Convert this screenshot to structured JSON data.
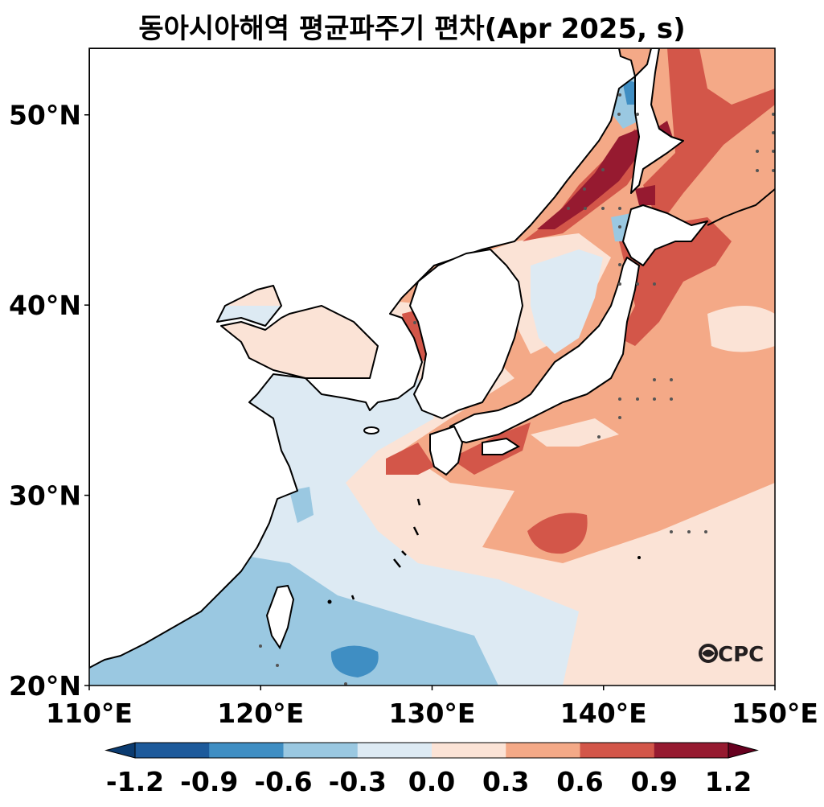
{
  "title": "동아시아해역 평균파주기 편차(Apr 2025, s)",
  "logo_text": "CPC",
  "map": {
    "extent": {
      "lon_min": 110,
      "lon_max": 150,
      "lat_min": 20,
      "lat_max": 53.5
    },
    "x_ticks": [
      {
        "value": 110,
        "label": "110°E"
      },
      {
        "value": 120,
        "label": "120°E"
      },
      {
        "value": 130,
        "label": "130°E"
      },
      {
        "value": 140,
        "label": "140°E"
      },
      {
        "value": 150,
        "label": "150°E"
      }
    ],
    "y_ticks": [
      {
        "value": 20,
        "label": "20°N"
      },
      {
        "value": 30,
        "label": "30°N"
      },
      {
        "value": 40,
        "label": "40°N"
      },
      {
        "value": 50,
        "label": "50°N"
      }
    ]
  },
  "colorbar": {
    "levels": [
      -1.2,
      -0.9,
      -0.6,
      -0.3,
      0.0,
      0.3,
      0.6,
      0.9,
      1.2
    ],
    "labels": [
      "-1.2",
      "-0.9",
      "-0.6",
      "-0.3",
      "0.0",
      "0.3",
      "0.6",
      "0.9",
      "1.2"
    ],
    "under_color": "#0b3b70",
    "over_color": "#67001f",
    "colors": [
      "#1d5a9b",
      "#3f8ec3",
      "#9ac8e1",
      "#ddeaf3",
      "#fbe3d6",
      "#f4a987",
      "#d35649",
      "#961a30"
    ]
  },
  "land_color": "#ffffff",
  "coast_color": "#000000",
  "stipple_color": "#555555"
}
